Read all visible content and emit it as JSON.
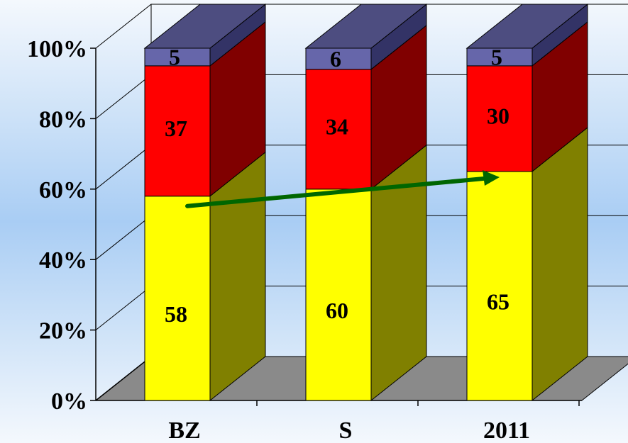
{
  "chart_data": {
    "type": "bar",
    "stacked": true,
    "percent": true,
    "three_d": true,
    "categories": [
      "BZ",
      "S",
      "2011"
    ],
    "series": [
      {
        "values": [
          58,
          60,
          65
        ],
        "color": "#ffff00",
        "side_color": "#808000"
      },
      {
        "values": [
          37,
          34,
          30
        ],
        "color": "#ff0000",
        "side_color": "#800000"
      },
      {
        "values": [
          5,
          6,
          5
        ],
        "color": "#6666aa",
        "side_color": "#333366"
      }
    ],
    "y_ticks": [
      "0%",
      "20%",
      "40%",
      "60%",
      "80%",
      "100%"
    ],
    "ylim": [
      0,
      100
    ],
    "grid": true,
    "trend_arrow": {
      "from_category": 0,
      "to_category": 2,
      "color": "#006600"
    }
  }
}
